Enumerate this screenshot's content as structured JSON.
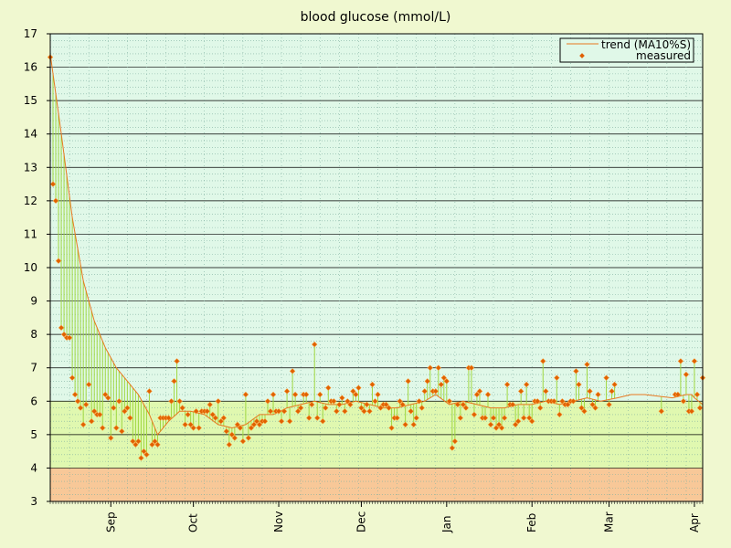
{
  "chart_data": {
    "type": "line",
    "title": "blood glucose (mmol/L)",
    "xlabel": "",
    "ylabel": "",
    "ylim": [
      3,
      17
    ],
    "y_ticks": [
      3,
      4,
      5,
      6,
      7,
      8,
      9,
      10,
      11,
      12,
      13,
      14,
      15,
      16,
      17
    ],
    "x_range": [
      "2021-08-10",
      "2022-04-04"
    ],
    "x_ticks": [
      {
        "label": "Sep",
        "date": "2021-09-01"
      },
      {
        "label": "Oct",
        "date": "2021-10-01"
      },
      {
        "label": "Nov",
        "date": "2021-11-01"
      },
      {
        "label": "Dec",
        "date": "2021-12-01"
      },
      {
        "label": "Jan",
        "date": "2022-01-01"
      },
      {
        "label": "Feb",
        "date": "2022-02-01"
      },
      {
        "label": "Mar",
        "date": "2022-03-01"
      },
      {
        "label": "Apr",
        "date": "2022-04-01"
      }
    ],
    "zones": [
      {
        "from": 3,
        "to": 4,
        "color": "#f8c898"
      },
      {
        "from": 4,
        "to": 6,
        "color": "#e0f8b0"
      },
      {
        "from": 6,
        "to": 17,
        "color": "#e0f8e8"
      }
    ],
    "grid": true,
    "legend_position": "top-right",
    "legend": [
      {
        "label": "trend (MA10%S)",
        "kind": "line"
      },
      {
        "label": "measured",
        "kind": "point"
      }
    ],
    "colors": {
      "trend": "#e87820",
      "measured": "#e06000",
      "deviation": "#a0d840",
      "major_grid": "#000000",
      "minor_grid": "#80b0a0"
    },
    "series": [
      {
        "name": "trend (MA10%S)",
        "points": [
          [
            "2021-08-10",
            16.4
          ],
          [
            "2021-08-14",
            14.0
          ],
          [
            "2021-08-18",
            11.5
          ],
          [
            "2021-08-22",
            9.6
          ],
          [
            "2021-08-26",
            8.4
          ],
          [
            "2021-08-30",
            7.6
          ],
          [
            "2021-09-03",
            7.0
          ],
          [
            "2021-09-07",
            6.6
          ],
          [
            "2021-09-11",
            6.2
          ],
          [
            "2021-09-15",
            5.6
          ],
          [
            "2021-09-18",
            5.0
          ],
          [
            "2021-09-22",
            5.4
          ],
          [
            "2021-09-26",
            5.7
          ],
          [
            "2021-09-30",
            5.7
          ],
          [
            "2021-10-05",
            5.6
          ],
          [
            "2021-10-10",
            5.3
          ],
          [
            "2021-10-15",
            5.2
          ],
          [
            "2021-10-20",
            5.3
          ],
          [
            "2021-10-25",
            5.6
          ],
          [
            "2021-10-30",
            5.6
          ],
          [
            "2021-11-04",
            5.8
          ],
          [
            "2021-11-09",
            5.9
          ],
          [
            "2021-11-14",
            6.0
          ],
          [
            "2021-11-19",
            5.9
          ],
          [
            "2021-11-24",
            5.9
          ],
          [
            "2021-11-29",
            6.0
          ],
          [
            "2021-12-04",
            5.9
          ],
          [
            "2021-12-09",
            5.8
          ],
          [
            "2021-12-14",
            5.8
          ],
          [
            "2021-12-19",
            5.9
          ],
          [
            "2021-12-24",
            6.0
          ],
          [
            "2021-12-28",
            6.2
          ],
          [
            "2022-01-02",
            5.9
          ],
          [
            "2022-01-07",
            6.0
          ],
          [
            "2022-01-12",
            5.9
          ],
          [
            "2022-01-17",
            5.8
          ],
          [
            "2022-01-22",
            5.8
          ],
          [
            "2022-01-27",
            5.9
          ],
          [
            "2022-02-01",
            5.9
          ],
          [
            "2022-02-06",
            6.0
          ],
          [
            "2022-02-11",
            5.9
          ],
          [
            "2022-02-16",
            6.0
          ],
          [
            "2022-02-21",
            6.1
          ],
          [
            "2022-02-26",
            6.0
          ],
          [
            "2022-03-04",
            6.1
          ],
          [
            "2022-03-09",
            6.2
          ],
          [
            "2022-03-14",
            6.2
          ],
          [
            "2022-03-24",
            6.1
          ],
          [
            "2022-03-29",
            6.2
          ],
          [
            "2022-03-31",
            6.2
          ],
          [
            "2022-04-01",
            6.1
          ],
          [
            "2022-04-04",
            5.9
          ]
        ]
      },
      {
        "name": "measured",
        "points": [
          [
            "2021-08-10",
            16.3
          ],
          [
            "2021-08-11",
            12.5
          ],
          [
            "2021-08-12",
            12.0
          ],
          [
            "2021-08-13",
            10.2
          ],
          [
            "2021-08-14",
            8.2
          ],
          [
            "2021-08-15",
            8.0
          ],
          [
            "2021-08-16",
            7.9
          ],
          [
            "2021-08-17",
            7.9
          ],
          [
            "2021-08-18",
            6.7
          ],
          [
            "2021-08-19",
            6.2
          ],
          [
            "2021-08-20",
            6.0
          ],
          [
            "2021-08-21",
            5.8
          ],
          [
            "2021-08-22",
            5.3
          ],
          [
            "2021-08-23",
            5.9
          ],
          [
            "2021-08-24",
            6.5
          ],
          [
            "2021-08-25",
            5.4
          ],
          [
            "2021-08-26",
            5.7
          ],
          [
            "2021-08-27",
            5.6
          ],
          [
            "2021-08-28",
            5.6
          ],
          [
            "2021-08-29",
            5.2
          ],
          [
            "2021-08-30",
            6.2
          ],
          [
            "2021-08-31",
            6.1
          ],
          [
            "2021-09-01",
            4.9
          ],
          [
            "2021-09-02",
            5.8
          ],
          [
            "2021-09-03",
            5.2
          ],
          [
            "2021-09-04",
            6.0
          ],
          [
            "2021-09-05",
            5.1
          ],
          [
            "2021-09-06",
            5.7
          ],
          [
            "2021-09-07",
            5.8
          ],
          [
            "2021-09-08",
            5.5
          ],
          [
            "2021-09-09",
            4.8
          ],
          [
            "2021-09-10",
            4.7
          ],
          [
            "2021-09-11",
            4.8
          ],
          [
            "2021-09-12",
            4.3
          ],
          [
            "2021-09-13",
            4.5
          ],
          [
            "2021-09-14",
            4.4
          ],
          [
            "2021-09-15",
            6.3
          ],
          [
            "2021-09-16",
            4.7
          ],
          [
            "2021-09-17",
            4.8
          ],
          [
            "2021-09-18",
            4.7
          ],
          [
            "2021-09-19",
            5.5
          ],
          [
            "2021-09-20",
            5.5
          ],
          [
            "2021-09-21",
            5.5
          ],
          [
            "2021-09-22",
            5.5
          ],
          [
            "2021-09-23",
            6.0
          ],
          [
            "2021-09-24",
            6.6
          ],
          [
            "2021-09-25",
            7.2
          ],
          [
            "2021-09-26",
            6.0
          ],
          [
            "2021-09-27",
            5.8
          ],
          [
            "2021-09-28",
            5.3
          ],
          [
            "2021-09-29",
            5.6
          ],
          [
            "2021-09-30",
            5.3
          ],
          [
            "2021-10-01",
            5.2
          ],
          [
            "2021-10-02",
            5.7
          ],
          [
            "2021-10-03",
            5.2
          ],
          [
            "2021-10-04",
            5.7
          ],
          [
            "2021-10-05",
            5.7
          ],
          [
            "2021-10-06",
            5.7
          ],
          [
            "2021-10-07",
            5.9
          ],
          [
            "2021-10-08",
            5.6
          ],
          [
            "2021-10-09",
            5.5
          ],
          [
            "2021-10-10",
            6.0
          ],
          [
            "2021-10-11",
            5.4
          ],
          [
            "2021-10-12",
            5.5
          ],
          [
            "2021-10-13",
            5.1
          ],
          [
            "2021-10-14",
            4.7
          ],
          [
            "2021-10-15",
            5.0
          ],
          [
            "2021-10-16",
            4.9
          ],
          [
            "2021-10-17",
            5.3
          ],
          [
            "2021-10-18",
            5.2
          ],
          [
            "2021-10-19",
            4.8
          ],
          [
            "2021-10-20",
            6.2
          ],
          [
            "2021-10-21",
            4.9
          ],
          [
            "2021-10-22",
            5.2
          ],
          [
            "2021-10-23",
            5.3
          ],
          [
            "2021-10-24",
            5.4
          ],
          [
            "2021-10-25",
            5.3
          ],
          [
            "2021-10-26",
            5.4
          ],
          [
            "2021-10-27",
            5.4
          ],
          [
            "2021-10-28",
            6.0
          ],
          [
            "2021-10-29",
            5.7
          ],
          [
            "2021-10-30",
            6.2
          ],
          [
            "2021-10-31",
            5.7
          ],
          [
            "2021-11-01",
            5.7
          ],
          [
            "2021-11-02",
            5.4
          ],
          [
            "2021-11-03",
            5.7
          ],
          [
            "2021-11-04",
            6.3
          ],
          [
            "2021-11-05",
            5.4
          ],
          [
            "2021-11-06",
            6.9
          ],
          [
            "2021-11-07",
            6.2
          ],
          [
            "2021-11-08",
            5.7
          ],
          [
            "2021-11-09",
            5.8
          ],
          [
            "2021-11-10",
            6.2
          ],
          [
            "2021-11-11",
            6.2
          ],
          [
            "2021-11-12",
            5.5
          ],
          [
            "2021-11-13",
            5.9
          ],
          [
            "2021-11-14",
            7.7
          ],
          [
            "2021-11-15",
            5.5
          ],
          [
            "2021-11-16",
            6.2
          ],
          [
            "2021-11-17",
            5.4
          ],
          [
            "2021-11-18",
            5.8
          ],
          [
            "2021-11-19",
            6.4
          ],
          [
            "2021-11-20",
            6.0
          ],
          [
            "2021-11-21",
            6.0
          ],
          [
            "2021-11-22",
            5.7
          ],
          [
            "2021-11-23",
            5.9
          ],
          [
            "2021-11-24",
            6.1
          ],
          [
            "2021-11-25",
            5.7
          ],
          [
            "2021-11-26",
            6.0
          ],
          [
            "2021-11-27",
            5.9
          ],
          [
            "2021-11-28",
            6.3
          ],
          [
            "2021-11-29",
            6.2
          ],
          [
            "2021-11-30",
            6.4
          ],
          [
            "2021-12-01",
            5.8
          ],
          [
            "2021-12-02",
            5.7
          ],
          [
            "2021-12-03",
            5.9
          ],
          [
            "2021-12-04",
            5.7
          ],
          [
            "2021-12-05",
            6.5
          ],
          [
            "2021-12-06",
            6.0
          ],
          [
            "2021-12-07",
            6.2
          ],
          [
            "2021-12-08",
            5.8
          ],
          [
            "2021-12-09",
            5.9
          ],
          [
            "2021-12-10",
            5.9
          ],
          [
            "2021-12-11",
            5.8
          ],
          [
            "2021-12-12",
            5.2
          ],
          [
            "2021-12-13",
            5.5
          ],
          [
            "2021-12-14",
            5.5
          ],
          [
            "2021-12-15",
            6.0
          ],
          [
            "2021-12-16",
            5.9
          ],
          [
            "2021-12-17",
            5.3
          ],
          [
            "2021-12-18",
            6.6
          ],
          [
            "2021-12-19",
            5.7
          ],
          [
            "2021-12-20",
            5.3
          ],
          [
            "2021-12-21",
            5.5
          ],
          [
            "2021-12-22",
            6.0
          ],
          [
            "2021-12-23",
            5.8
          ],
          [
            "2021-12-24",
            6.3
          ],
          [
            "2021-12-25",
            6.6
          ],
          [
            "2021-12-26",
            7.0
          ],
          [
            "2021-12-27",
            6.3
          ],
          [
            "2021-12-28",
            6.3
          ],
          [
            "2021-12-29",
            7.0
          ],
          [
            "2021-12-30",
            6.5
          ],
          [
            "2021-12-31",
            6.7
          ],
          [
            "2022-01-01",
            6.6
          ],
          [
            "2022-01-02",
            6.0
          ],
          [
            "2022-01-03",
            4.6
          ],
          [
            "2022-01-04",
            4.8
          ],
          [
            "2022-01-05",
            5.9
          ],
          [
            "2022-01-06",
            5.5
          ],
          [
            "2022-01-07",
            5.9
          ],
          [
            "2022-01-08",
            5.8
          ],
          [
            "2022-01-09",
            7.0
          ],
          [
            "2022-01-10",
            7.0
          ],
          [
            "2022-01-11",
            5.6
          ],
          [
            "2022-01-12",
            6.2
          ],
          [
            "2022-01-13",
            6.3
          ],
          [
            "2022-01-14",
            5.5
          ],
          [
            "2022-01-15",
            5.5
          ],
          [
            "2022-01-16",
            6.2
          ],
          [
            "2022-01-17",
            5.3
          ],
          [
            "2022-01-18",
            5.5
          ],
          [
            "2022-01-19",
            5.2
          ],
          [
            "2022-01-20",
            5.3
          ],
          [
            "2022-01-21",
            5.2
          ],
          [
            "2022-01-22",
            5.5
          ],
          [
            "2022-01-23",
            6.5
          ],
          [
            "2022-01-24",
            5.9
          ],
          [
            "2022-01-25",
            5.9
          ],
          [
            "2022-01-26",
            5.3
          ],
          [
            "2022-01-27",
            5.4
          ],
          [
            "2022-01-28",
            6.3
          ],
          [
            "2022-01-29",
            5.5
          ],
          [
            "2022-01-30",
            6.5
          ],
          [
            "2022-01-31",
            5.5
          ],
          [
            "2022-02-01",
            5.4
          ],
          [
            "2022-02-02",
            6.0
          ],
          [
            "2022-02-03",
            6.0
          ],
          [
            "2022-02-04",
            5.8
          ],
          [
            "2022-02-05",
            7.2
          ],
          [
            "2022-02-06",
            6.3
          ],
          [
            "2022-02-07",
            6.0
          ],
          [
            "2022-02-08",
            6.0
          ],
          [
            "2022-02-09",
            6.0
          ],
          [
            "2022-02-10",
            6.7
          ],
          [
            "2022-02-11",
            5.6
          ],
          [
            "2022-02-12",
            6.0
          ],
          [
            "2022-02-13",
            5.9
          ],
          [
            "2022-02-14",
            5.9
          ],
          [
            "2022-02-15",
            6.0
          ],
          [
            "2022-02-16",
            6.0
          ],
          [
            "2022-02-17",
            6.9
          ],
          [
            "2022-02-18",
            6.5
          ],
          [
            "2022-02-19",
            5.8
          ],
          [
            "2022-02-20",
            5.7
          ],
          [
            "2022-02-21",
            7.1
          ],
          [
            "2022-02-22",
            6.3
          ],
          [
            "2022-02-23",
            5.9
          ],
          [
            "2022-02-24",
            5.8
          ],
          [
            "2022-02-25",
            6.2
          ],
          [
            "2022-02-28",
            6.7
          ],
          [
            "2022-03-01",
            5.9
          ],
          [
            "2022-03-02",
            6.3
          ],
          [
            "2022-03-03",
            6.5
          ],
          [
            "2022-03-20",
            5.7
          ],
          [
            "2022-03-25",
            6.2
          ],
          [
            "2022-03-26",
            6.2
          ],
          [
            "2022-03-27",
            7.2
          ],
          [
            "2022-03-28",
            6.0
          ],
          [
            "2022-03-29",
            6.8
          ],
          [
            "2022-03-30",
            5.7
          ],
          [
            "2022-03-31",
            5.7
          ],
          [
            "2022-04-01",
            7.2
          ],
          [
            "2022-04-02",
            6.2
          ],
          [
            "2022-04-03",
            5.8
          ],
          [
            "2022-04-04",
            6.7
          ]
        ]
      }
    ]
  }
}
